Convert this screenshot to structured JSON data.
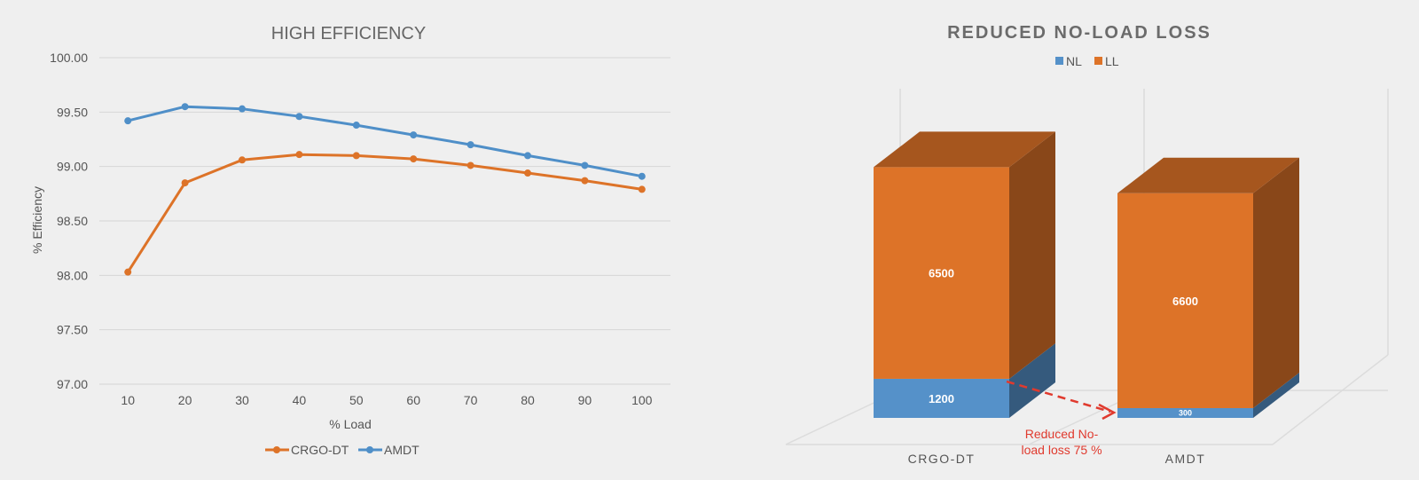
{
  "chart_data": [
    {
      "type": "line",
      "title": "HIGH EFFICIENCY",
      "xlabel": "% Load",
      "ylabel": "% Efficiency",
      "x": [
        10,
        20,
        30,
        40,
        50,
        60,
        70,
        80,
        90,
        100
      ],
      "ylim": [
        97.0,
        100.0
      ],
      "yticks": [
        "97.00",
        "97.50",
        "98.00",
        "98.50",
        "99.00",
        "99.50",
        "100.00"
      ],
      "grid": true,
      "legend": "bottom",
      "series": [
        {
          "name": "CRGO-DT",
          "color": "#dd7328",
          "values": [
            98.03,
            98.85,
            99.06,
            99.11,
            99.1,
            99.07,
            99.01,
            98.94,
            98.87,
            98.79
          ]
        },
        {
          "name": "AMDT",
          "color": "#4f8fc8",
          "values": [
            99.42,
            99.55,
            99.53,
            99.46,
            99.38,
            99.29,
            99.2,
            99.1,
            99.01,
            98.91
          ]
        }
      ]
    },
    {
      "type": "bar",
      "stacked": true,
      "style": "3d",
      "title": "REDUCED NO-LOAD LOSS",
      "legend": "top",
      "categories": [
        "CRGO-DT",
        "AMDT"
      ],
      "series": [
        {
          "name": "NL",
          "color": "#5591c9",
          "values": [
            1200,
            300
          ]
        },
        {
          "name": "LL",
          "color": "#dd7328",
          "values": [
            6500,
            6600
          ]
        }
      ]
    }
  ],
  "annotation": {
    "line1": "Reduced No-",
    "line2": "load loss 75 %"
  }
}
